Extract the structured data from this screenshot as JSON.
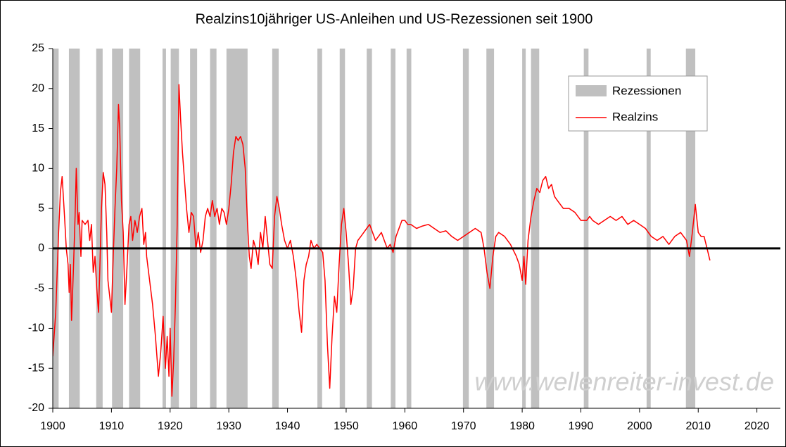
{
  "chart_data": {
    "type": "line",
    "title": "Realzins10jähriger US-Anleihen und US-Rezessionen seit 1900",
    "watermark": "www.wellenreiter-invest.de",
    "xlim": [
      1900,
      2024
    ],
    "xticks": [
      1900,
      1910,
      1920,
      1930,
      1940,
      1950,
      1960,
      1970,
      1980,
      1990,
      2000,
      2010,
      2020
    ],
    "ylim": [
      -20,
      25
    ],
    "yticks": [
      -20,
      -15,
      -10,
      -5,
      0,
      5,
      10,
      15,
      20,
      25
    ],
    "legend": "upper right",
    "bands": {
      "name": "Rezessionen",
      "color": "#c0c0c0",
      "ranges": [
        [
          1900.0,
          1901.0
        ],
        [
          1902.75,
          1904.6
        ],
        [
          1907.4,
          1908.5
        ],
        [
          1910.1,
          1912.0
        ],
        [
          1913.0,
          1914.9
        ],
        [
          1918.7,
          1919.3
        ],
        [
          1920.1,
          1921.5
        ],
        [
          1923.4,
          1924.6
        ],
        [
          1926.8,
          1927.9
        ],
        [
          1929.6,
          1933.2
        ],
        [
          1937.4,
          1938.5
        ],
        [
          1945.1,
          1945.9
        ],
        [
          1948.9,
          1949.8
        ],
        [
          1953.5,
          1954.4
        ],
        [
          1957.6,
          1958.4
        ],
        [
          1960.3,
          1961.1
        ],
        [
          1969.9,
          1970.9
        ],
        [
          1973.9,
          1975.2
        ],
        [
          1980.0,
          1980.6
        ],
        [
          1981.5,
          1982.9
        ],
        [
          1990.5,
          1991.3
        ],
        [
          2001.2,
          2001.9
        ],
        [
          2007.9,
          2009.5
        ]
      ]
    },
    "x": [
      1900,
      1900.5,
      1901,
      1901.3,
      1901.6,
      1902,
      1902.3,
      1902.6,
      1902.8,
      1903,
      1903.2,
      1903.5,
      1903.8,
      1904,
      1904.3,
      1904.5,
      1904.8,
      1905,
      1905.5,
      1906,
      1906.3,
      1906.6,
      1906.9,
      1907.2,
      1907.5,
      1907.8,
      1908,
      1908.3,
      1908.6,
      1908.9,
      1909.2,
      1909.4,
      1909.7,
      1910,
      1910.3,
      1910.6,
      1910.9,
      1911.2,
      1911.4,
      1911.7,
      1912,
      1912.3,
      1912.6,
      1913,
      1913.3,
      1913.6,
      1914,
      1914.4,
      1914.8,
      1915.2,
      1915.5,
      1915.8,
      1916,
      1916.5,
      1917,
      1917.5,
      1918,
      1918.4,
      1918.8,
      1919.2,
      1919.5,
      1919.8,
      1920,
      1920.3,
      1920.6,
      1920.9,
      1921.2,
      1921.5,
      1921.8,
      1922.1,
      1922.4,
      1922.8,
      1923.2,
      1923.6,
      1924,
      1924.4,
      1924.8,
      1925.2,
      1925.6,
      1926,
      1926.4,
      1926.8,
      1927.2,
      1927.6,
      1928,
      1928.4,
      1928.8,
      1929.2,
      1929.6,
      1930,
      1930.4,
      1930.8,
      1931.2,
      1931.6,
      1932,
      1932.4,
      1932.8,
      1933.2,
      1933.5,
      1933.8,
      1934.2,
      1934.6,
      1935,
      1935.4,
      1935.8,
      1936.2,
      1936.6,
      1937,
      1937.4,
      1937.8,
      1938.2,
      1938.6,
      1939,
      1939.5,
      1940,
      1940.5,
      1941,
      1941.5,
      1942,
      1942.4,
      1942.8,
      1943.2,
      1943.6,
      1944,
      1944.5,
      1945,
      1945.5,
      1946,
      1946.4,
      1946.8,
      1947.2,
      1947.6,
      1948,
      1948.4,
      1948.8,
      1949.2,
      1949.6,
      1950,
      1950.4,
      1950.8,
      1951.2,
      1951.6,
      1952,
      1952.5,
      1953,
      1953.5,
      1954,
      1954.5,
      1955,
      1955.5,
      1956,
      1956.5,
      1957,
      1957.5,
      1958,
      1958.5,
      1959,
      1959.5,
      1960,
      1960.5,
      1961,
      1962,
      1963,
      1964,
      1965,
      1966,
      1967,
      1968,
      1969,
      1970,
      1971,
      1972,
      1973,
      1973.5,
      1974,
      1974.5,
      1975,
      1975.5,
      1976,
      1977,
      1978,
      1979,
      1979.5,
      1980,
      1980.3,
      1980.6,
      1981,
      1981.5,
      1982,
      1982.5,
      1983,
      1983.5,
      1984,
      1984.5,
      1985,
      1985.5,
      1986,
      1987,
      1988,
      1989,
      1990,
      1991,
      1991.5,
      1992,
      1993,
      1994,
      1995,
      1996,
      1997,
      1998,
      1999,
      2000,
      2001,
      2002,
      2003,
      2004,
      2005,
      2006,
      2007,
      2008,
      2008.5,
      2009,
      2009.5,
      2010,
      2010.5,
      2011,
      2011.5,
      2012
    ],
    "series": [
      {
        "name": "Realzins",
        "color": "#ff0000",
        "values": [
          -13.5,
          -8,
          2,
          7,
          9,
          4,
          0,
          -2,
          -5.5,
          -2,
          -9,
          -3,
          4,
          10,
          3,
          4.5,
          -1,
          3.5,
          3,
          3.5,
          1,
          3,
          -3,
          -1,
          -5,
          -8,
          -3,
          5,
          9.5,
          8,
          2,
          -4,
          -6,
          -8,
          -1,
          5,
          10,
          18,
          15,
          6,
          2,
          -7,
          -3,
          3,
          4,
          1,
          3.5,
          2,
          4,
          5,
          0.5,
          2,
          -1,
          -4,
          -7,
          -11,
          -16,
          -13,
          -8.5,
          -15,
          -11,
          -16,
          -10,
          -18.5,
          -14,
          -7,
          3,
          20.5,
          16,
          12,
          9,
          5,
          2,
          4.5,
          4,
          0,
          2,
          -0.5,
          1,
          4,
          5,
          4,
          6,
          4,
          5,
          3,
          5,
          4.5,
          3,
          5,
          8,
          12,
          14,
          13.5,
          14,
          13,
          10,
          3,
          -1,
          -2.5,
          1,
          0,
          -2,
          2,
          0,
          4,
          1,
          -2,
          -2.5,
          4,
          6.5,
          5,
          3,
          1,
          0,
          1,
          -1,
          -4,
          -8,
          -10.5,
          -4,
          -2,
          -1,
          1,
          0,
          0.5,
          0,
          -0.5,
          -4,
          -12,
          -17.5,
          -11,
          -6,
          -8,
          -2,
          3,
          5,
          2,
          -2,
          -7,
          -5,
          0,
          1,
          1.5,
          2,
          2.5,
          3,
          2,
          1,
          1.5,
          2,
          1,
          0,
          0.5,
          -0.5,
          1.5,
          2.5,
          3.5,
          3.5,
          3,
          3,
          2.5,
          2.8,
          3,
          2.5,
          2,
          2.2,
          1.5,
          1,
          1.5,
          2,
          2.5,
          2,
          0,
          -3,
          -5,
          -1,
          1.5,
          2,
          1.5,
          0.5,
          -1,
          -2,
          -4,
          -1,
          -4.5,
          1,
          4,
          6,
          7.5,
          7,
          8.5,
          9,
          7.5,
          8,
          6.5,
          6,
          5,
          5,
          4.5,
          3.5,
          3.5,
          4,
          3.5,
          3,
          3.5,
          4,
          3.5,
          4,
          3,
          3.5,
          3,
          2.5,
          1.5,
          1,
          1.5,
          0.5,
          1.5,
          2,
          1,
          -1,
          2,
          5.5,
          2,
          1.5,
          1.5,
          0,
          -1.5
        ]
      }
    ]
  }
}
